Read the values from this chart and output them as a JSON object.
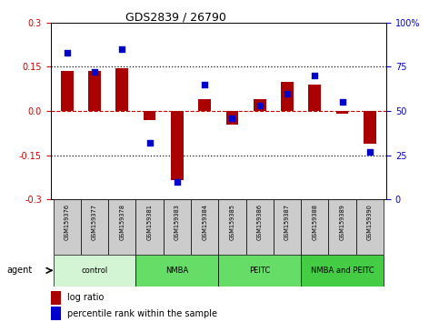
{
  "title": "GDS2839 / 26790",
  "samples": [
    "GSM159376",
    "GSM159377",
    "GSM159378",
    "GSM159381",
    "GSM159383",
    "GSM159384",
    "GSM159385",
    "GSM159386",
    "GSM159387",
    "GSM159388",
    "GSM159389",
    "GSM159390"
  ],
  "log_ratio": [
    0.135,
    0.135,
    0.145,
    -0.03,
    -0.235,
    0.04,
    -0.045,
    0.04,
    0.1,
    0.09,
    -0.01,
    -0.11
  ],
  "pct_rank": [
    83,
    72,
    85,
    32,
    10,
    65,
    46,
    53,
    60,
    70,
    55,
    27
  ],
  "bar_color": "#aa0000",
  "dot_color": "#0000cc",
  "zero_line_color": "#cc0000",
  "dotted_line_color": "#111111",
  "ylim_left": [
    -0.3,
    0.3
  ],
  "ylim_right": [
    0,
    100
  ],
  "yticks_left": [
    -0.3,
    -0.15,
    0.0,
    0.15,
    0.3
  ],
  "yticks_right": [
    0,
    25,
    50,
    75,
    100
  ],
  "ytick_labels_right": [
    "0",
    "25",
    "50",
    "75",
    "100%"
  ],
  "groups": [
    {
      "label": "control",
      "start": 0,
      "end": 3,
      "color": "#d4f5d4"
    },
    {
      "label": "NMBA",
      "start": 3,
      "end": 6,
      "color": "#66dd66"
    },
    {
      "label": "PEITC",
      "start": 6,
      "end": 9,
      "color": "#66dd66"
    },
    {
      "label": "NMBA and PEITC",
      "start": 9,
      "end": 12,
      "color": "#44cc44"
    }
  ],
  "agent_label": "agent",
  "legend_bar_label": "log ratio",
  "legend_dot_label": "percentile rank within the sample",
  "bar_width": 0.45,
  "tick_label_color_left": "#cc0000",
  "tick_label_color_right": "#0000cc",
  "sample_box_color": "#cccccc",
  "plot_bg": "white",
  "fig_bg": "white"
}
